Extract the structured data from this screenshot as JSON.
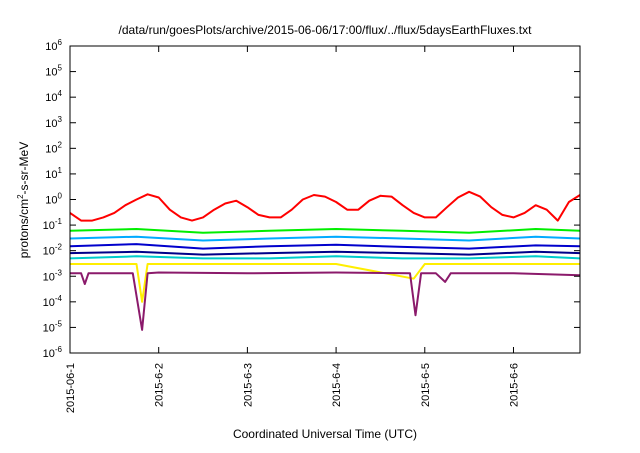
{
  "chart_data": {
    "type": "line",
    "title": "/data/run/goesPlots/archive/2015-06-06/17:00/flux/../flux/5daysEarthFluxes.txt",
    "xlabel": "Coordinated Universal Time (UTC)",
    "ylabel_parts": [
      "protons/cm",
      "2",
      "-s-sr-MeV"
    ],
    "y_scale": "log",
    "ylim": [
      1e-06,
      1000000.0
    ],
    "xlim": [
      "2015-06-01T00:00",
      "2015-06-06T18:00"
    ],
    "y_ticks": [
      {
        "base": "10",
        "exp": "-6",
        "value": 1e-06
      },
      {
        "base": "10",
        "exp": "-5",
        "value": 1e-05
      },
      {
        "base": "10",
        "exp": "-4",
        "value": 0.0001
      },
      {
        "base": "10",
        "exp": "-3",
        "value": 0.001
      },
      {
        "base": "10",
        "exp": "-2",
        "value": 0.01
      },
      {
        "base": "10",
        "exp": "-1",
        "value": 0.1
      },
      {
        "base": "10",
        "exp": "0",
        "value": 1.0
      },
      {
        "base": "10",
        "exp": "1",
        "value": 10.0
      },
      {
        "base": "10",
        "exp": "2",
        "value": 100.0
      },
      {
        "base": "10",
        "exp": "3",
        "value": 1000.0
      },
      {
        "base": "10",
        "exp": "4",
        "value": 10000.0
      },
      {
        "base": "10",
        "exp": "5",
        "value": 100000.0
      },
      {
        "base": "10",
        "exp": "6",
        "value": 1000000.0
      }
    ],
    "x_ticks": [
      {
        "label": "2015-06-1",
        "value": "2015-06-01T00:00"
      },
      {
        "label": "2015-6-2",
        "value": "2015-06-02T00:00"
      },
      {
        "label": "2015-6-3",
        "value": "2015-06-03T00:00"
      },
      {
        "label": "2015-6-4",
        "value": "2015-06-04T00:00"
      },
      {
        "label": "2015-6-5",
        "value": "2015-06-05T00:00"
      },
      {
        "label": "2015-6-6",
        "value": "2015-06-06T00:00"
      }
    ],
    "grid": false,
    "legend": "none",
    "series": [
      {
        "color": "#ff0000",
        "x": [
          "2015-06-01T00:00",
          "2015-06-01T03:00",
          "2015-06-01T06:00",
          "2015-06-01T09:00",
          "2015-06-01T12:00",
          "2015-06-01T15:00",
          "2015-06-01T18:00",
          "2015-06-01T21:00",
          "2015-06-02T00:00",
          "2015-06-02T03:00",
          "2015-06-02T06:00",
          "2015-06-02T09:00",
          "2015-06-02T12:00",
          "2015-06-02T15:00",
          "2015-06-02T18:00",
          "2015-06-02T21:00",
          "2015-06-03T00:00",
          "2015-06-03T03:00",
          "2015-06-03T06:00",
          "2015-06-03T09:00",
          "2015-06-03T12:00",
          "2015-06-03T15:00",
          "2015-06-03T18:00",
          "2015-06-03T21:00",
          "2015-06-04T00:00",
          "2015-06-04T03:00",
          "2015-06-04T06:00",
          "2015-06-04T09:00",
          "2015-06-04T12:00",
          "2015-06-04T15:00",
          "2015-06-04T18:00",
          "2015-06-04T21:00",
          "2015-06-05T00:00",
          "2015-06-05T03:00",
          "2015-06-05T06:00",
          "2015-06-05T09:00",
          "2015-06-05T12:00",
          "2015-06-05T15:00",
          "2015-06-05T18:00",
          "2015-06-05T21:00",
          "2015-06-06T00:00",
          "2015-06-06T03:00",
          "2015-06-06T06:00",
          "2015-06-06T09:00",
          "2015-06-06T12:00",
          "2015-06-06T15:00",
          "2015-06-06T18:00"
        ],
        "values": [
          0.3,
          0.15,
          0.15,
          0.2,
          0.3,
          0.6,
          1.0,
          1.6,
          1.2,
          0.4,
          0.2,
          0.15,
          0.2,
          0.4,
          0.7,
          0.9,
          0.5,
          0.25,
          0.2,
          0.2,
          0.4,
          1.0,
          1.5,
          1.3,
          0.8,
          0.4,
          0.4,
          0.9,
          1.4,
          1.3,
          0.6,
          0.3,
          0.2,
          0.2,
          0.5,
          1.2,
          2.0,
          1.3,
          0.5,
          0.25,
          0.2,
          0.3,
          0.6,
          0.4,
          0.15,
          0.8,
          1.5
        ]
      },
      {
        "color": "#00ee00",
        "x": [
          "2015-06-01T00:00",
          "2015-06-01T18:00",
          "2015-06-02T12:00",
          "2015-06-03T06:00",
          "2015-06-04T00:00",
          "2015-06-04T18:00",
          "2015-06-05T12:00",
          "2015-06-06T06:00",
          "2015-06-06T18:00"
        ],
        "values": [
          0.06,
          0.07,
          0.05,
          0.06,
          0.07,
          0.06,
          0.05,
          0.07,
          0.06
        ]
      },
      {
        "color": "#00aaff",
        "x": [
          "2015-06-01T00:00",
          "2015-06-01T18:00",
          "2015-06-02T12:00",
          "2015-06-03T06:00",
          "2015-06-04T00:00",
          "2015-06-04T18:00",
          "2015-06-05T12:00",
          "2015-06-06T06:00",
          "2015-06-06T18:00"
        ],
        "values": [
          0.03,
          0.035,
          0.025,
          0.03,
          0.035,
          0.03,
          0.025,
          0.035,
          0.03
        ]
      },
      {
        "color": "#0000cc",
        "x": [
          "2015-06-01T00:00",
          "2015-06-01T18:00",
          "2015-06-02T12:00",
          "2015-06-03T06:00",
          "2015-06-04T00:00",
          "2015-06-04T18:00",
          "2015-06-05T12:00",
          "2015-06-06T06:00",
          "2015-06-06T18:00"
        ],
        "values": [
          0.015,
          0.018,
          0.012,
          0.015,
          0.017,
          0.014,
          0.012,
          0.016,
          0.015
        ]
      },
      {
        "color": "#000088",
        "x": [
          "2015-06-01T00:00",
          "2015-06-01T18:00",
          "2015-06-02T12:00",
          "2015-06-03T06:00",
          "2015-06-04T00:00",
          "2015-06-04T18:00",
          "2015-06-05T12:00",
          "2015-06-06T06:00",
          "2015-06-06T18:00"
        ],
        "values": [
          0.008,
          0.009,
          0.007,
          0.008,
          0.009,
          0.008,
          0.007,
          0.009,
          0.008
        ]
      },
      {
        "color": "#00cccc",
        "x": [
          "2015-06-01T00:00",
          "2015-06-01T18:00",
          "2015-06-02T12:00",
          "2015-06-03T06:00",
          "2015-06-04T00:00",
          "2015-06-04T18:00",
          "2015-06-05T12:00",
          "2015-06-06T06:00",
          "2015-06-06T18:00"
        ],
        "values": [
          0.005,
          0.006,
          0.005,
          0.005,
          0.006,
          0.005,
          0.005,
          0.006,
          0.005
        ]
      },
      {
        "color": "#ffee00",
        "x": [
          "2015-06-01T00:00",
          "2015-06-01T12:00",
          "2015-06-01T18:00",
          "2015-06-01T19:30",
          "2015-06-01T21:00",
          "2015-06-02T00:00",
          "2015-06-03T00:00",
          "2015-06-04T00:00",
          "2015-06-04T21:00",
          "2015-06-05T00:00",
          "2015-06-06T00:00",
          "2015-06-06T18:00"
        ],
        "values": [
          0.003,
          0.003,
          0.003,
          0.0001,
          0.003,
          0.003,
          0.003,
          0.003,
          0.0008,
          0.003,
          0.003,
          0.003
        ]
      },
      {
        "color": "#8b1a6b",
        "x": [
          "2015-06-01T00:00",
          "2015-06-01T03:00",
          "2015-06-01T04:00",
          "2015-06-01T05:00",
          "2015-06-01T12:00",
          "2015-06-01T17:00",
          "2015-06-01T19:30",
          "2015-06-01T21:00",
          "2015-06-02T00:00",
          "2015-06-03T00:00",
          "2015-06-04T00:00",
          "2015-06-04T20:00",
          "2015-06-04T21:30",
          "2015-06-04T23:00",
          "2015-06-05T03:00",
          "2015-06-05T05:30",
          "2015-06-05T07:00",
          "2015-06-06T00:00",
          "2015-06-06T18:00"
        ],
        "values": [
          0.0013,
          0.0013,
          0.0005,
          0.0013,
          0.0013,
          0.0013,
          8e-06,
          0.0013,
          0.0014,
          0.0013,
          0.0014,
          0.0013,
          3e-05,
          0.0013,
          0.0013,
          0.0006,
          0.0013,
          0.0013,
          0.0011
        ]
      }
    ]
  }
}
